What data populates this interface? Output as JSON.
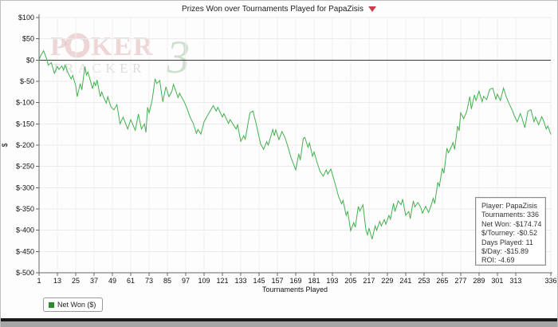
{
  "header": {
    "title": "Prizes Won over Tournaments Played for PapaZisis"
  },
  "chart_data": {
    "type": "line",
    "title": "Prizes Won over Tournaments Played for PapaZisis",
    "xlabel": "Tournaments Played",
    "ylabel": "$",
    "xlim": [
      1,
      336
    ],
    "ylim": [
      -500,
      100
    ],
    "grid": true,
    "legend_position": "bottom-left",
    "x_ticks": [
      1,
      13,
      25,
      37,
      49,
      61,
      73,
      85,
      97,
      109,
      121,
      133,
      145,
      157,
      169,
      181,
      193,
      205,
      217,
      229,
      241,
      253,
      265,
      277,
      289,
      301,
      313,
      336
    ],
    "y_ticks": [
      100,
      50,
      0,
      -50,
      -100,
      -150,
      -200,
      -250,
      -300,
      -350,
      -400,
      -450,
      -500
    ],
    "y_tick_labels": [
      "$100",
      "$50",
      "$0",
      "$-50",
      "$-100",
      "$-150",
      "$-200",
      "$-250",
      "$-300",
      "$-350",
      "$-400",
      "$-450",
      "$-500"
    ],
    "series": [
      {
        "name": "Net Won ($)",
        "color": "#43b14f",
        "points": [
          [
            1,
            0
          ],
          [
            2,
            10
          ],
          [
            4,
            22
          ],
          [
            5,
            12
          ],
          [
            6,
            2
          ],
          [
            7,
            -12
          ],
          [
            9,
            -6
          ],
          [
            11,
            -31
          ],
          [
            13,
            -15
          ],
          [
            14,
            -22
          ],
          [
            16,
            -14
          ],
          [
            17,
            -24
          ],
          [
            18,
            -12
          ],
          [
            20,
            -30
          ],
          [
            22,
            -44
          ],
          [
            23,
            -36
          ],
          [
            25,
            -60
          ],
          [
            26,
            -86
          ],
          [
            28,
            -55
          ],
          [
            29,
            -70
          ],
          [
            31,
            -15
          ],
          [
            32,
            -35
          ],
          [
            33,
            -28
          ],
          [
            36,
            -67
          ],
          [
            37,
            -52
          ],
          [
            38,
            -60
          ],
          [
            39,
            -47
          ],
          [
            41,
            -86
          ],
          [
            42,
            -75
          ],
          [
            43,
            -85
          ],
          [
            45,
            -101
          ],
          [
            46,
            -86
          ],
          [
            48,
            -110
          ],
          [
            50,
            -117
          ],
          [
            52,
            -105
          ],
          [
            54,
            -150
          ],
          [
            56,
            -134
          ],
          [
            59,
            -162
          ],
          [
            61,
            -140
          ],
          [
            64,
            -165
          ],
          [
            66,
            -127
          ],
          [
            68,
            -162
          ],
          [
            70,
            -150
          ],
          [
            71,
            -170
          ],
          [
            72,
            -111
          ],
          [
            73,
            -124
          ],
          [
            75,
            -95
          ],
          [
            77,
            -44
          ],
          [
            78,
            -55
          ],
          [
            80,
            -48
          ],
          [
            82,
            -98
          ],
          [
            84,
            -63
          ],
          [
            86,
            -86
          ],
          [
            88,
            -73
          ],
          [
            89,
            -57
          ],
          [
            92,
            -88
          ],
          [
            93,
            -78
          ],
          [
            94,
            -85
          ],
          [
            96,
            -98
          ],
          [
            98,
            -115
          ],
          [
            100,
            -135
          ],
          [
            102,
            -150
          ],
          [
            104,
            -172
          ],
          [
            105,
            -163
          ],
          [
            107,
            -174
          ],
          [
            109,
            -145
          ],
          [
            111,
            -132
          ],
          [
            113,
            -120
          ],
          [
            115,
            -107
          ],
          [
            117,
            -120
          ],
          [
            118,
            -111
          ],
          [
            121,
            -134
          ],
          [
            122,
            -126
          ],
          [
            125,
            -149
          ],
          [
            126,
            -140
          ],
          [
            130,
            -162
          ],
          [
            131,
            -152
          ],
          [
            133,
            -191
          ],
          [
            135,
            -178
          ],
          [
            136,
            -186
          ],
          [
            139,
            -124
          ],
          [
            141,
            -120
          ],
          [
            143,
            -148
          ],
          [
            146,
            -197
          ],
          [
            148,
            -210
          ],
          [
            150,
            -192
          ],
          [
            151,
            -200
          ],
          [
            154,
            -163
          ],
          [
            155,
            -178
          ],
          [
            156,
            -164
          ],
          [
            158,
            -187
          ],
          [
            160,
            -168
          ],
          [
            162,
            -182
          ],
          [
            164,
            -205
          ],
          [
            166,
            -230
          ],
          [
            169,
            -258
          ],
          [
            171,
            -220
          ],
          [
            172,
            -235
          ],
          [
            174,
            -184
          ],
          [
            175,
            -182
          ],
          [
            177,
            -205
          ],
          [
            178,
            -195
          ],
          [
            180,
            -226
          ],
          [
            181,
            -216
          ],
          [
            183,
            -241
          ],
          [
            185,
            -262
          ],
          [
            187,
            -273
          ],
          [
            189,
            -258
          ],
          [
            190,
            -268
          ],
          [
            192,
            -256
          ],
          [
            195,
            -293
          ],
          [
            197,
            -320
          ],
          [
            199,
            -338
          ],
          [
            200,
            -330
          ],
          [
            202,
            -365
          ],
          [
            203,
            -355
          ],
          [
            205,
            -401
          ],
          [
            207,
            -382
          ],
          [
            208,
            -393
          ],
          [
            210,
            -344
          ],
          [
            211,
            -355
          ],
          [
            213,
            -340
          ],
          [
            215,
            -400
          ],
          [
            216,
            -411
          ],
          [
            217,
            -395
          ],
          [
            219,
            -421
          ],
          [
            221,
            -390
          ],
          [
            222,
            -400
          ],
          [
            224,
            -379
          ],
          [
            225,
            -390
          ],
          [
            227,
            -375
          ],
          [
            228,
            -386
          ],
          [
            230,
            -365
          ],
          [
            231,
            -374
          ],
          [
            233,
            -337
          ],
          [
            234,
            -356
          ],
          [
            236,
            -331
          ],
          [
            238,
            -340
          ],
          [
            239,
            -327
          ],
          [
            241,
            -365
          ],
          [
            243,
            -356
          ],
          [
            244,
            -373
          ],
          [
            245,
            -350
          ],
          [
            246,
            -331
          ],
          [
            247,
            -345
          ],
          [
            249,
            -335
          ],
          [
            251,
            -348
          ],
          [
            252,
            -360
          ],
          [
            254,
            -344
          ],
          [
            256,
            -358
          ],
          [
            258,
            -338
          ],
          [
            259,
            -325
          ],
          [
            260,
            -337
          ],
          [
            262,
            -287
          ],
          [
            263,
            -297
          ],
          [
            265,
            -254
          ],
          [
            266,
            -266
          ],
          [
            268,
            -207
          ],
          [
            269,
            -218
          ],
          [
            271,
            -203
          ],
          [
            272,
            -194
          ],
          [
            273,
            -210
          ],
          [
            275,
            -155
          ],
          [
            276,
            -166
          ],
          [
            277,
            -124
          ],
          [
            279,
            -138
          ],
          [
            281,
            -120
          ],
          [
            283,
            -86
          ],
          [
            284,
            -115
          ],
          [
            286,
            -82
          ],
          [
            287,
            -95
          ],
          [
            289,
            -73
          ],
          [
            291,
            -98
          ],
          [
            292,
            -85
          ],
          [
            294,
            -93
          ],
          [
            296,
            -69
          ],
          [
            298,
            -66
          ],
          [
            300,
            -92
          ],
          [
            301,
            -80
          ],
          [
            303,
            -95
          ],
          [
            305,
            -66
          ],
          [
            307,
            -88
          ],
          [
            309,
            -105
          ],
          [
            311,
            -120
          ],
          [
            312,
            -130
          ],
          [
            314,
            -145
          ],
          [
            316,
            -126
          ],
          [
            317,
            -135
          ],
          [
            319,
            -159
          ],
          [
            321,
            -120
          ],
          [
            323,
            -117
          ],
          [
            325,
            -145
          ],
          [
            326,
            -134
          ],
          [
            328,
            -152
          ],
          [
            330,
            -133
          ],
          [
            331,
            -140
          ],
          [
            333,
            -162
          ],
          [
            334,
            -155
          ],
          [
            336,
            -174.74
          ]
        ]
      }
    ]
  },
  "legend": {
    "label": "Net Won ($)",
    "swatch_color": "#2d8a2d"
  },
  "stats_box": {
    "lines": [
      "Player: PapaZisis",
      "Tournaments: 336",
      "Net Won: -$174.74",
      "$/Tourney: -$0.52",
      "Days Played: 11",
      "$/Day: -$15.89",
      "ROI: -4.69"
    ]
  },
  "watermark": {
    "word1": "P",
    "word2": "KER",
    "word3": "TRACKER",
    "numeral": "3"
  },
  "colors": {
    "accent_red": "#c9404a",
    "grid_h": "#ebebeb",
    "grid_v": "#f3eded",
    "zero_line": "#3a3a3a",
    "axis": "#666666",
    "tick_text": "#111111"
  }
}
